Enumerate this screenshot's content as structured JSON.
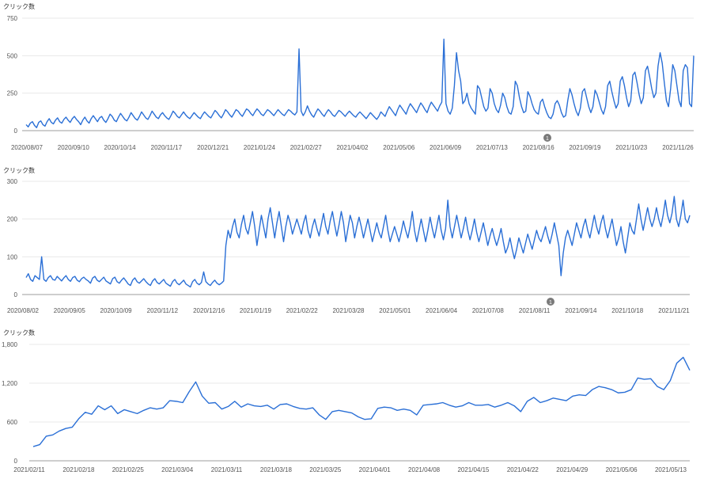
{
  "chart_data": [
    {
      "type": "line",
      "ylabel": "クリック数",
      "ylim": [
        0,
        750
      ],
      "yticks": [
        0,
        250,
        500,
        750
      ],
      "ytick_labels": [
        "0",
        "250",
        "500",
        "750"
      ],
      "grid": true,
      "series_color": "#2a6fd6",
      "x_tick_labels": [
        "2020/08/07",
        "2020/09/10",
        "2020/10/14",
        "2020/11/17",
        "2020/12/21",
        "2021/01/24",
        "2021/02/27",
        "2021/04/02",
        "2021/05/06",
        "2021/06/09",
        "2021/07/13",
        "2021/08/16",
        "2021/09/19",
        "2021/10/23",
        "2021/11/26"
      ],
      "annotation": {
        "label": "1",
        "x": "2021/08/16"
      },
      "values": [
        40,
        25,
        50,
        60,
        35,
        20,
        55,
        65,
        40,
        30,
        60,
        80,
        55,
        45,
        70,
        85,
        60,
        50,
        75,
        90,
        70,
        55,
        80,
        95,
        75,
        60,
        40,
        70,
        90,
        65,
        50,
        80,
        100,
        80,
        60,
        85,
        95,
        70,
        55,
        80,
        110,
        95,
        70,
        60,
        90,
        115,
        95,
        75,
        65,
        90,
        120,
        100,
        80,
        70,
        95,
        125,
        105,
        85,
        75,
        100,
        130,
        110,
        90,
        80,
        105,
        120,
        100,
        85,
        75,
        100,
        130,
        115,
        95,
        85,
        105,
        125,
        105,
        90,
        80,
        100,
        120,
        105,
        90,
        80,
        105,
        125,
        110,
        95,
        85,
        110,
        135,
        120,
        100,
        85,
        110,
        140,
        125,
        105,
        90,
        115,
        140,
        130,
        110,
        95,
        120,
        145,
        135,
        115,
        100,
        125,
        145,
        130,
        110,
        100,
        120,
        140,
        130,
        115,
        100,
        120,
        140,
        125,
        110,
        100,
        120,
        140,
        130,
        115,
        105,
        125,
        545,
        130,
        100,
        125,
        165,
        130,
        105,
        90,
        120,
        145,
        130,
        110,
        95,
        120,
        140,
        125,
        105,
        95,
        115,
        135,
        125,
        110,
        95,
        115,
        130,
        115,
        100,
        90,
        110,
        125,
        110,
        95,
        80,
        100,
        120,
        105,
        90,
        75,
        95,
        125,
        110,
        95,
        130,
        160,
        140,
        120,
        100,
        140,
        170,
        150,
        130,
        110,
        150,
        180,
        160,
        140,
        120,
        155,
        185,
        165,
        140,
        120,
        160,
        190,
        170,
        150,
        130,
        165,
        190,
        610,
        180,
        130,
        110,
        150,
        300,
        520,
        400,
        330,
        180,
        200,
        250,
        180,
        150,
        130,
        110,
        300,
        280,
        220,
        160,
        130,
        150,
        280,
        250,
        180,
        140,
        120,
        170,
        250,
        220,
        160,
        120,
        110,
        160,
        330,
        300,
        220,
        160,
        120,
        130,
        260,
        230,
        180,
        140,
        120,
        110,
        190,
        210,
        160,
        120,
        90,
        80,
        110,
        180,
        200,
        170,
        120,
        90,
        100,
        200,
        280,
        240,
        180,
        130,
        100,
        150,
        260,
        280,
        220,
        160,
        120,
        160,
        270,
        240,
        190,
        140,
        110,
        160,
        300,
        330,
        260,
        200,
        150,
        180,
        330,
        360,
        300,
        220,
        160,
        200,
        370,
        390,
        320,
        240,
        180,
        220,
        400,
        430,
        360,
        280,
        220,
        250,
        430,
        520,
        450,
        320,
        200,
        160,
        280,
        440,
        400,
        300,
        200,
        160,
        400,
        440,
        420,
        180,
        160,
        500
      ]
    },
    {
      "type": "line",
      "ylabel": "クリック数",
      "ylim": [
        0,
        300
      ],
      "yticks": [
        0,
        100,
        200,
        300
      ],
      "ytick_labels": [
        "0",
        "100",
        "200",
        "300"
      ],
      "grid": true,
      "series_color": "#2a6fd6",
      "x_tick_labels": [
        "2020/08/02",
        "2020/09/05",
        "2020/10/09",
        "2020/11/12",
        "2020/12/16",
        "2021/01/19",
        "2021/02/22",
        "2021/03/28",
        "2021/05/01",
        "2021/06/04",
        "2021/07/08",
        "2021/08/11",
        "2021/09/14",
        "2021/10/18",
        "2021/11/21"
      ],
      "annotation": {
        "label": "1",
        "x": "2021/08/11"
      },
      "values": [
        45,
        55,
        40,
        35,
        50,
        45,
        40,
        100,
        40,
        35,
        45,
        50,
        40,
        38,
        48,
        42,
        36,
        44,
        50,
        40,
        35,
        45,
        48,
        38,
        34,
        42,
        46,
        40,
        36,
        30,
        44,
        48,
        38,
        34,
        40,
        46,
        36,
        32,
        28,
        42,
        46,
        34,
        30,
        38,
        44,
        36,
        28,
        24,
        38,
        44,
        34,
        30,
        36,
        42,
        34,
        28,
        24,
        36,
        42,
        32,
        28,
        34,
        40,
        30,
        26,
        22,
        34,
        40,
        30,
        26,
        32,
        38,
        28,
        24,
        20,
        34,
        40,
        30,
        26,
        32,
        60,
        34,
        28,
        24,
        32,
        38,
        30,
        26,
        30,
        36,
        130,
        170,
        150,
        180,
        200,
        165,
        150,
        185,
        210,
        175,
        160,
        190,
        220,
        180,
        130,
        170,
        210,
        180,
        150,
        200,
        230,
        190,
        150,
        190,
        220,
        180,
        140,
        180,
        210,
        190,
        160,
        180,
        200,
        180,
        160,
        190,
        210,
        170,
        150,
        180,
        200,
        175,
        155,
        185,
        215,
        180,
        160,
        195,
        220,
        185,
        155,
        185,
        220,
        190,
        140,
        175,
        210,
        190,
        150,
        180,
        205,
        180,
        150,
        175,
        200,
        170,
        140,
        165,
        190,
        165,
        150,
        180,
        210,
        170,
        140,
        160,
        180,
        160,
        140,
        165,
        195,
        170,
        150,
        180,
        220,
        170,
        140,
        170,
        200,
        170,
        140,
        170,
        205,
        175,
        150,
        180,
        210,
        170,
        145,
        175,
        250,
        180,
        150,
        180,
        210,
        180,
        150,
        175,
        205,
        170,
        145,
        170,
        200,
        165,
        140,
        165,
        190,
        160,
        130,
        155,
        175,
        150,
        130,
        150,
        175,
        140,
        110,
        125,
        150,
        120,
        95,
        120,
        150,
        130,
        110,
        135,
        160,
        140,
        120,
        145,
        170,
        150,
        140,
        160,
        180,
        155,
        135,
        160,
        190,
        160,
        130,
        50,
        110,
        150,
        170,
        150,
        130,
        160,
        190,
        170,
        150,
        180,
        200,
        170,
        150,
        180,
        210,
        180,
        160,
        190,
        210,
        175,
        150,
        175,
        200,
        165,
        130,
        150,
        180,
        140,
        110,
        150,
        190,
        170,
        160,
        200,
        240,
        200,
        170,
        200,
        230,
        200,
        180,
        200,
        230,
        200,
        180,
        210,
        250,
        210,
        190,
        215,
        260,
        200,
        180,
        210,
        250,
        200,
        190,
        210
      ]
    },
    {
      "type": "line",
      "ylabel": "クリック数",
      "ylim": [
        0,
        1800
      ],
      "yticks": [
        0,
        600,
        1200,
        1800
      ],
      "ytick_labels": [
        "0",
        "600",
        "1,200",
        "1,800"
      ],
      "grid": true,
      "series_color": "#2a6fd6",
      "x_tick_labels": [
        "2021/02/11",
        "2021/02/18",
        "2021/02/25",
        "2021/03/04",
        "2021/03/11",
        "2021/03/18",
        "2021/03/25",
        "2021/04/01",
        "2021/04/08",
        "2021/04/15",
        "2021/04/22",
        "2021/04/29",
        "2021/05/06",
        "2021/05/13"
      ],
      "values": [
        220,
        250,
        380,
        400,
        460,
        500,
        520,
        650,
        750,
        720,
        850,
        790,
        850,
        730,
        790,
        760,
        730,
        780,
        820,
        800,
        820,
        930,
        920,
        900,
        1070,
        1220,
        1000,
        890,
        900,
        800,
        840,
        920,
        830,
        880,
        850,
        840,
        860,
        800,
        870,
        880,
        840,
        810,
        800,
        820,
        710,
        640,
        760,
        780,
        760,
        740,
        680,
        640,
        650,
        810,
        830,
        820,
        780,
        800,
        780,
        710,
        860,
        870,
        880,
        900,
        860,
        830,
        850,
        900,
        860,
        860,
        870,
        830,
        860,
        900,
        850,
        760,
        920,
        980,
        900,
        930,
        970,
        950,
        930,
        1000,
        1020,
        1010,
        1100,
        1150,
        1130,
        1100,
        1050,
        1060,
        1100,
        1280,
        1260,
        1270,
        1150,
        1100,
        1240,
        1510,
        1600,
        1400
      ]
    }
  ]
}
